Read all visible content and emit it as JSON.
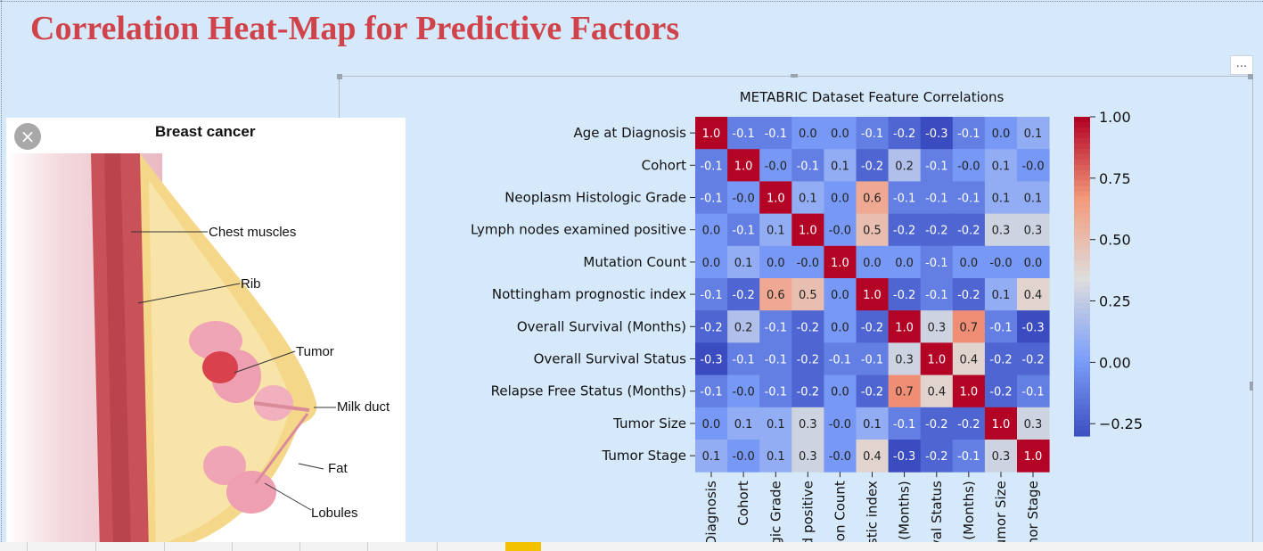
{
  "slide": {
    "title": "Correlation Heat-Map for Predictive Factors",
    "more_label": "...",
    "close_label": "×"
  },
  "illustration": {
    "title": "Breast cancer",
    "labels": {
      "chest_muscles": "Chest muscles",
      "rib": "Rib",
      "tumor": "Tumor",
      "milk_duct": "Milk duct",
      "fat": "Fat",
      "lobules": "Lobules"
    }
  },
  "chart_data": {
    "type": "heatmap",
    "title": "METABRIC Dataset Feature Correlations",
    "row_labels": [
      "Age at Diagnosis",
      "Cohort",
      "Neoplasm Histologic Grade",
      "Lymph nodes examined positive",
      "Mutation Count",
      "Nottingham prognostic index",
      "Overall Survival (Months)",
      "Overall Survival Status",
      "Relapse Free Status (Months)",
      "Tumor Size",
      "Tumor Stage"
    ],
    "col_labels": [
      "at Diagnosis",
      "Cohort",
      "ologic Grade",
      "ined positive",
      "utation Count",
      "gnostic index",
      "ival (Months)",
      "rvival Status",
      "tus (Months)",
      "Tumor Size",
      "Tumor Stage"
    ],
    "values": [
      [
        1.0,
        -0.1,
        -0.1,
        0.0,
        0.0,
        -0.1,
        -0.2,
        -0.3,
        -0.1,
        0.0,
        0.1
      ],
      [
        -0.1,
        1.0,
        -0.0,
        -0.1,
        0.1,
        -0.2,
        0.2,
        -0.1,
        -0.0,
        0.1,
        -0.0
      ],
      [
        -0.1,
        -0.0,
        1.0,
        0.1,
        0.0,
        0.6,
        -0.1,
        -0.1,
        -0.1,
        0.1,
        0.1
      ],
      [
        0.0,
        -0.1,
        0.1,
        1.0,
        -0.0,
        0.5,
        -0.2,
        -0.2,
        -0.2,
        0.3,
        0.3
      ],
      [
        0.0,
        0.1,
        0.0,
        -0.0,
        1.0,
        0.0,
        0.0,
        -0.1,
        0.0,
        -0.0,
        0.0
      ],
      [
        -0.1,
        -0.2,
        0.6,
        0.5,
        0.0,
        1.0,
        -0.2,
        -0.1,
        -0.2,
        0.1,
        0.4
      ],
      [
        -0.2,
        0.2,
        -0.1,
        -0.2,
        0.0,
        -0.2,
        1.0,
        0.3,
        0.7,
        -0.1,
        -0.3
      ],
      [
        -0.3,
        -0.1,
        -0.1,
        -0.2,
        -0.1,
        -0.1,
        0.3,
        1.0,
        0.4,
        -0.2,
        -0.2
      ],
      [
        -0.1,
        -0.0,
        -0.1,
        -0.2,
        0.0,
        -0.2,
        0.7,
        0.4,
        1.0,
        -0.2,
        -0.1
      ],
      [
        0.0,
        0.1,
        0.1,
        0.3,
        -0.0,
        0.1,
        -0.1,
        -0.2,
        -0.2,
        1.0,
        0.3
      ],
      [
        0.1,
        -0.0,
        0.1,
        0.3,
        -0.0,
        0.4,
        -0.3,
        -0.2,
        -0.1,
        0.3,
        1.0
      ]
    ],
    "cell_labels": [
      [
        "1.0",
        "-0.1",
        "-0.1",
        "0.0",
        "0.0",
        "-0.1",
        "-0.2",
        "-0.3",
        "-0.1",
        "0.0",
        "0.1"
      ],
      [
        "-0.1",
        "1.0",
        "-0.0",
        "-0.1",
        "0.1",
        "-0.2",
        "0.2",
        "-0.1",
        "-0.0",
        "0.1",
        "-0.0"
      ],
      [
        "-0.1",
        "-0.0",
        "1.0",
        "0.1",
        "0.0",
        "0.6",
        "-0.1",
        "-0.1",
        "-0.1",
        "0.1",
        "0.1"
      ],
      [
        "0.0",
        "-0.1",
        "0.1",
        "1.0",
        "-0.0",
        "0.5",
        "-0.2",
        "-0.2",
        "-0.2",
        "0.3",
        "0.3"
      ],
      [
        "0.0",
        "0.1",
        "0.0",
        "-0.0",
        "1.0",
        "0.0",
        "0.0",
        "-0.1",
        "0.0",
        "-0.0",
        "0.0"
      ],
      [
        "-0.1",
        "-0.2",
        "0.6",
        "0.5",
        "0.0",
        "1.0",
        "-0.2",
        "-0.1",
        "-0.2",
        "0.1",
        "0.4"
      ],
      [
        "-0.2",
        "0.2",
        "-0.1",
        "-0.2",
        "0.0",
        "-0.2",
        "1.0",
        "0.3",
        "0.7",
        "-0.1",
        "-0.3"
      ],
      [
        "-0.3",
        "-0.1",
        "-0.1",
        "-0.2",
        "-0.1",
        "-0.1",
        "0.3",
        "1.0",
        "0.4",
        "-0.2",
        "-0.2"
      ],
      [
        "-0.1",
        "-0.0",
        "-0.1",
        "-0.2",
        "0.0",
        "-0.2",
        "0.7",
        "0.4",
        "1.0",
        "-0.2",
        "-0.1"
      ],
      [
        "0.0",
        "0.1",
        "0.1",
        "0.3",
        "-0.0",
        "0.1",
        "-0.1",
        "-0.2",
        "-0.2",
        "1.0",
        "0.3"
      ],
      [
        "0.1",
        "-0.0",
        "0.1",
        "0.3",
        "-0.0",
        "0.4",
        "-0.3",
        "-0.2",
        "-0.1",
        "0.3",
        "1.0"
      ]
    ],
    "colorbar": {
      "range": [
        -0.3,
        1.0
      ],
      "ticks": [
        1.0,
        0.75,
        0.5,
        0.25,
        0.0,
        -0.25
      ],
      "tick_labels": [
        "1.00",
        "0.75",
        "0.50",
        "0.25",
        "0.00",
        "−0.25"
      ]
    },
    "colormap": "coolwarm"
  },
  "colors": {
    "title_red": "#d0434a",
    "background": "#d6e9fb"
  }
}
